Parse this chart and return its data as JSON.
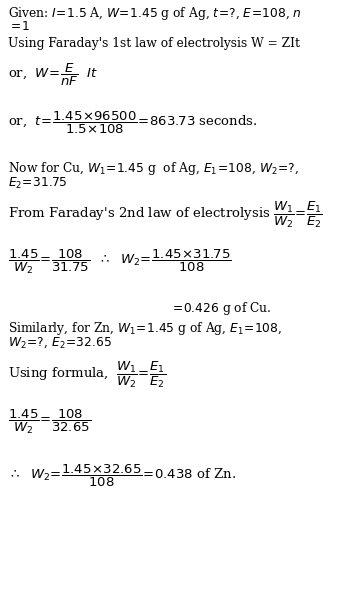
{
  "bg_color": "#ffffff",
  "figsize": [
    3.39,
    5.94
  ],
  "dpi": 100,
  "fs": 8.8,
  "fs_math": 9.5
}
